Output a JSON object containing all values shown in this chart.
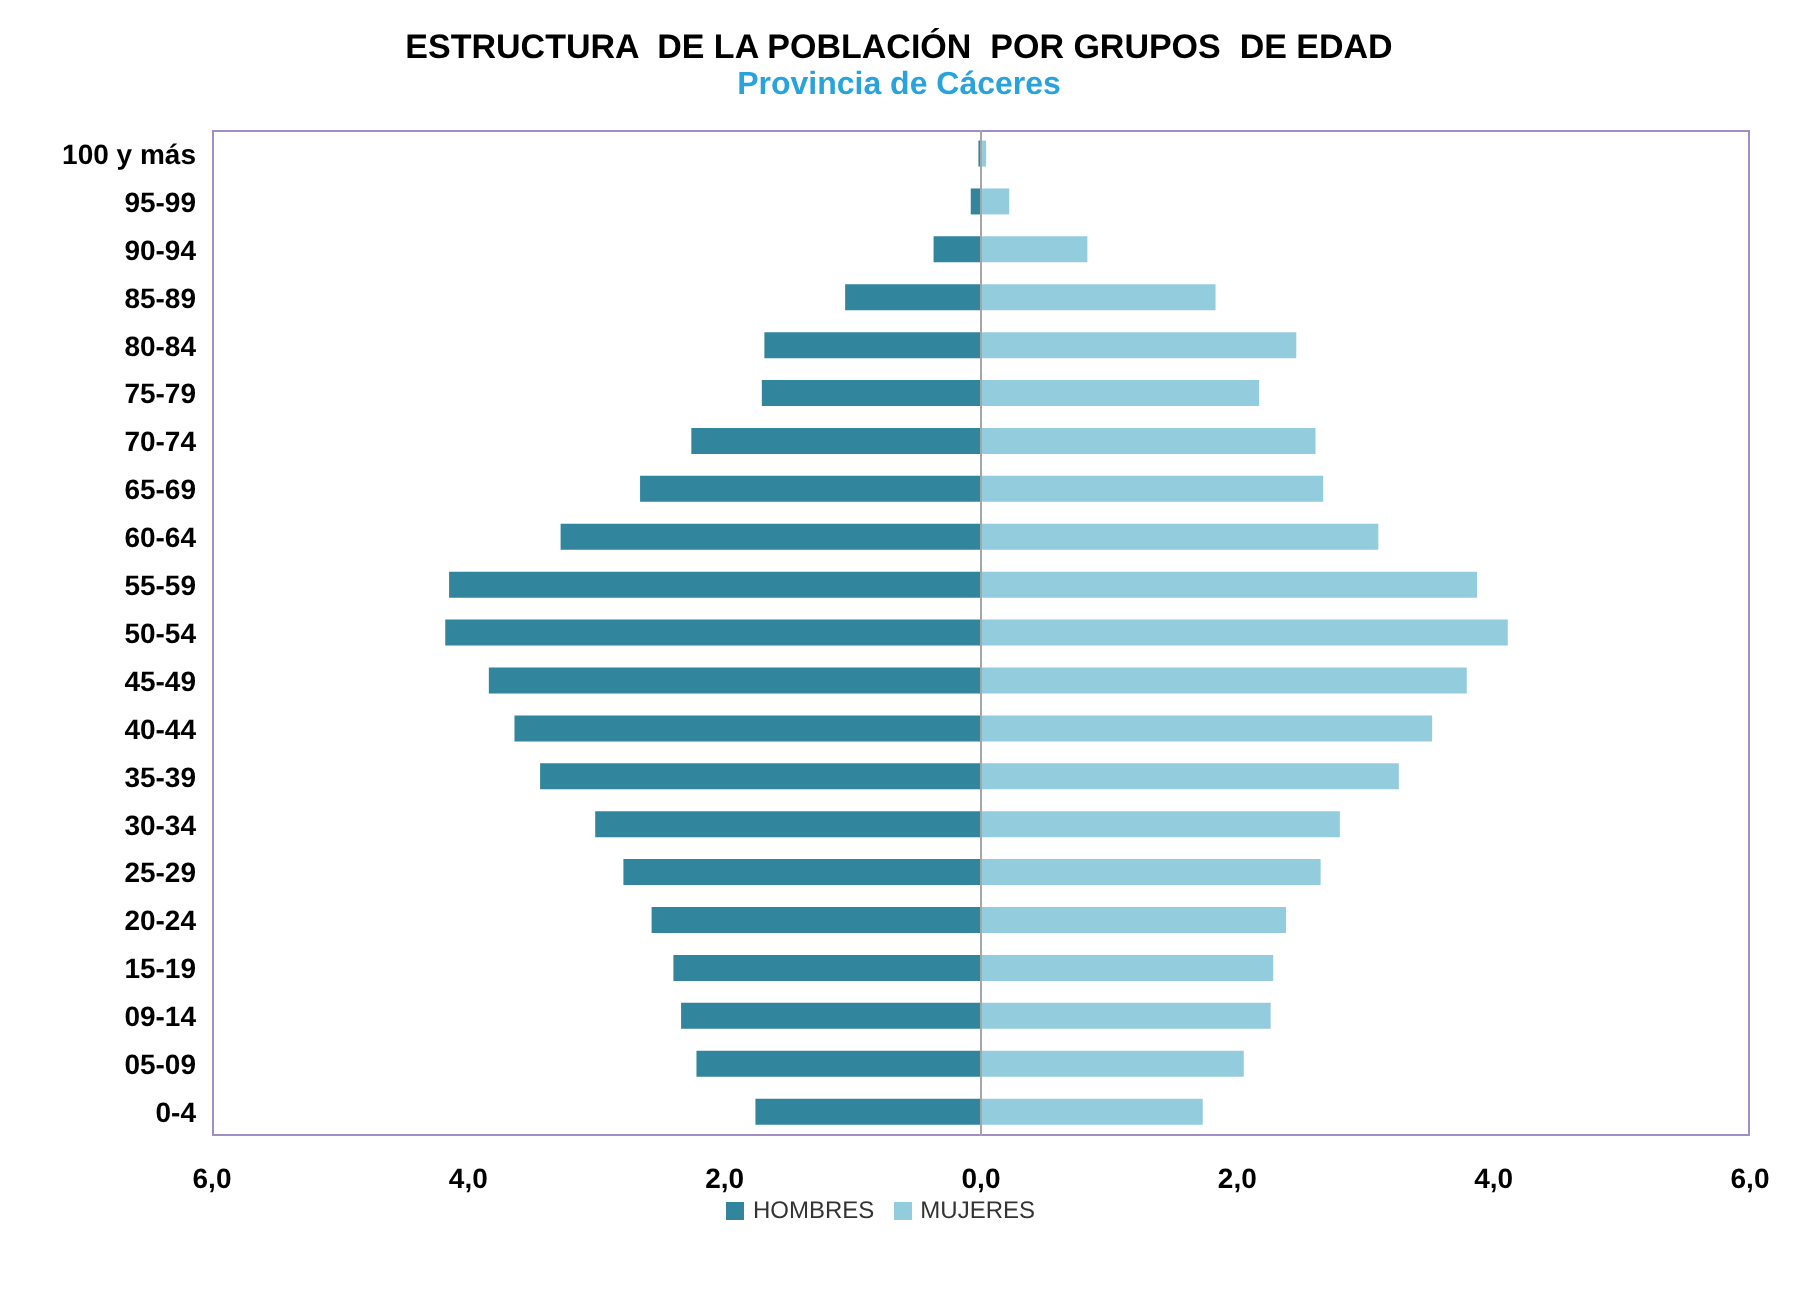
{
  "chart_data": {
    "type": "bar",
    "orientation": "horizontal",
    "stacked": true,
    "title": "ESTRUCTURA  DE LA POBLACIÓN  POR GRUPOS  DE EDAD",
    "subtitle": "Provincia de Cáceres",
    "categories": [
      "100 y más",
      "95-99",
      "90-94",
      "85-89",
      "80-84",
      "75-79",
      "70-74",
      "65-69",
      "60-64",
      "55-59",
      "50-54",
      "45-49",
      "40-44",
      "35-39",
      "30-34",
      "25-29",
      "20-24",
      "15-19",
      "09-14",
      "05-09",
      "0-4"
    ],
    "series": [
      {
        "name": "HOMBRES",
        "color": "#31859c",
        "values": [
          -0.02,
          -0.08,
          -0.37,
          -1.06,
          -1.69,
          -1.71,
          -2.26,
          -2.66,
          -3.28,
          -4.15,
          -4.18,
          -3.84,
          -3.64,
          -3.44,
          -3.01,
          -2.79,
          -2.57,
          -2.4,
          -2.34,
          -2.22,
          -1.76
        ]
      },
      {
        "name": "MUJERES",
        "color": "#93cddd",
        "values": [
          0.04,
          0.22,
          0.83,
          1.83,
          2.46,
          2.17,
          2.61,
          2.67,
          3.1,
          3.87,
          4.11,
          3.79,
          3.52,
          3.26,
          2.8,
          2.65,
          2.38,
          2.28,
          2.26,
          2.05,
          1.73
        ]
      }
    ],
    "xlim": [
      -6,
      6
    ],
    "xticks": [
      {
        "value": -6,
        "label": "6,0"
      },
      {
        "value": -4,
        "label": "4,0"
      },
      {
        "value": -2,
        "label": "2,0"
      },
      {
        "value": 0,
        "label": "0,0"
      },
      {
        "value": 2,
        "label": "2,0"
      },
      {
        "value": 4,
        "label": "4,0"
      },
      {
        "value": 6,
        "label": "6,0"
      }
    ],
    "grid": false,
    "legend": "bottom"
  }
}
